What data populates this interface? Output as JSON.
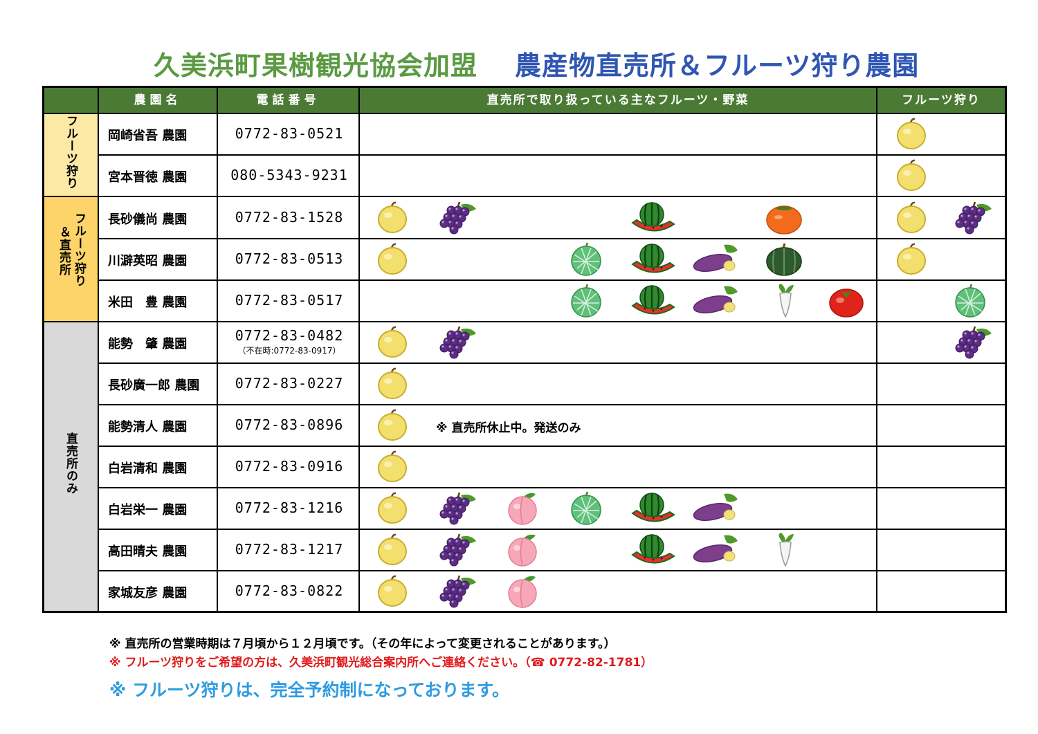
{
  "title": {
    "left": "久美浜町果樹観光協会加盟",
    "right": "農産物直売所＆フルーツ狩り農園"
  },
  "header": {
    "farm": "農園名",
    "phone": "電話番号",
    "items": "直売所で取り扱っている主なフルーツ・野菜",
    "picking": "フルーツ狩り"
  },
  "categories": [
    {
      "label": "フルーツ狩り"
    },
    {
      "label_line1": "フルーツ狩り",
      "label_line2": "＆直売所"
    },
    {
      "label": "直売所のみ"
    }
  ],
  "rows": [
    {
      "name": "岡崎省吾 農園",
      "phone": "0772-83-0521",
      "items": [],
      "picking": [
        "pear"
      ]
    },
    {
      "name": "宮本晋徳 農園",
      "phone": "080-5343-9231",
      "items": [],
      "picking": [
        "pear"
      ]
    },
    {
      "name": "長砂儀尚 農園",
      "phone": "0772-83-1528",
      "items": [
        "pear",
        "grape",
        "watermelon",
        "persimmon"
      ],
      "picking": [
        "pear",
        "grape"
      ]
    },
    {
      "name": "川澼英昭 農園",
      "phone": "0772-83-0513",
      "items": [
        "pear",
        "melon",
        "watermelon",
        "sweet-potato",
        "pumpkin"
      ],
      "picking": [
        "pear"
      ]
    },
    {
      "name": "米田　豊 農園",
      "phone": "0772-83-0517",
      "items": [
        "melon",
        "watermelon",
        "sweet-potato",
        "daikon",
        "tomato"
      ],
      "picking": [
        "melon"
      ]
    },
    {
      "name": "能勢　肇 農園",
      "phone": "0772-83-0482",
      "phone_alt": "（不在時:0772-83-0917）",
      "items": [
        "pear",
        "grape"
      ],
      "picking": [
        "grape"
      ]
    },
    {
      "name": "長砂廣一郎 農園",
      "phone": "0772-83-0227",
      "items": [
        "pear"
      ],
      "picking": []
    },
    {
      "name": "能勢清人 農園",
      "phone": "0772-83-0896",
      "items": [
        "pear"
      ],
      "note": "※ 直売所休止中。発送のみ",
      "picking": []
    },
    {
      "name": "白岩清和 農園",
      "phone": "0772-83-0916",
      "items": [
        "pear"
      ],
      "picking": []
    },
    {
      "name": "白岩栄一 農園",
      "phone": "0772-83-1216",
      "items": [
        "pear",
        "grape",
        "peach",
        "melon",
        "watermelon",
        "sweet-potato"
      ],
      "picking": []
    },
    {
      "name": "高田晴夫 農園",
      "phone": "0772-83-1217",
      "items": [
        "pear",
        "grape",
        "peach",
        "watermelon",
        "sweet-potato",
        "daikon"
      ],
      "picking": []
    },
    {
      "name": "家城友彦 農園",
      "phone": "0772-83-0822",
      "items": [
        "pear",
        "grape",
        "peach"
      ],
      "picking": []
    }
  ],
  "footer": {
    "note1": "※ 直売所の営業時期は７月頃から１２月頃です。（その年によって変更されることがあります。）",
    "note2": "※ フルーツ狩りをご希望の方は、久美浜町観光総合案内所へご連絡ください。（☎ 0772-82-1781）",
    "note3": "※ フルーツ狩りは、完全予約制になっております。"
  },
  "colors": {
    "title_green": "#5b9a43",
    "title_blue": "#2f56b3",
    "header_green": "#4a7a34",
    "cat1": "#fde9a6",
    "cat2": "#fdd46a",
    "cat3": "#d9d9d9",
    "note_red": "#e11a1a",
    "note_blue": "#2e9be0"
  }
}
